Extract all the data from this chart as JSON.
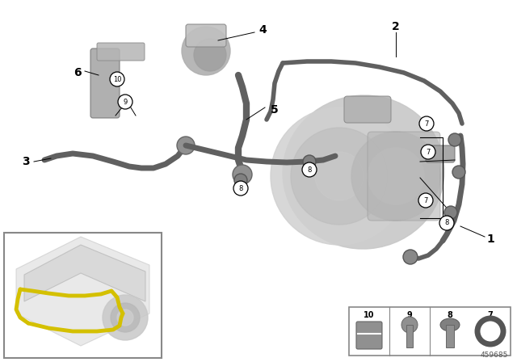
{
  "background_color": "#ffffff",
  "part_number": "459685",
  "hose_color": "#606060",
  "hose_lw": 5,
  "thin_hose_lw": 3.5,
  "turbo_color": "#c0c0c0",
  "turbo_dark": "#909090",
  "turbo_light": "#d8d8d8",
  "bracket_color": "#a8a8a8",
  "label_font": 9,
  "circle_font": 7,
  "inset_border": "#888888",
  "legend_border": "#888888",
  "yellow": "#d4c000",
  "gray_light": "#e0e0e0",
  "gray_mid": "#b8b8b8",
  "gray_dark": "#909090"
}
